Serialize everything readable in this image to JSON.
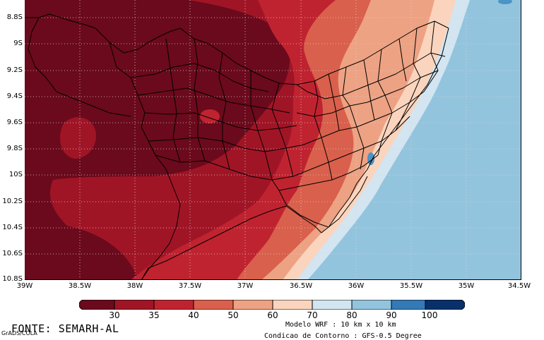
{
  "map": {
    "lat_labels": [
      "8.8S",
      "9S",
      "9.2S",
      "9.4S",
      "9.6S",
      "9.8S",
      "10S",
      "10.2S",
      "10.4S",
      "10.6S",
      "10.8S"
    ],
    "lon_labels": [
      "39W",
      "38.5W",
      "38W",
      "37.5W",
      "37W",
      "36.5W",
      "36W",
      "35.5W",
      "35W",
      "34.5W"
    ],
    "extent": {
      "lon_min": -39,
      "lon_max": -34.5,
      "lat_top": -8.66,
      "lat_bottom": -10.8
    },
    "colors": {
      "darkest_red": "#6b0a1c",
      "dark_red": "#a01526",
      "red": "#c02330",
      "salmon": "#d9604c",
      "light_salmon": "#eda283",
      "pale_peach": "#fbd4bd",
      "light_blue": "#d2e5f0",
      "ocean_blue": "#93c4de",
      "mid_blue": "#4b94c5",
      "border_line": "#000000",
      "grid_line": "#cccccc"
    }
  },
  "colorbar": {
    "labels": [
      "30",
      "35",
      "40",
      "50",
      "60",
      "70",
      "80",
      "90",
      "100"
    ],
    "colors": [
      "#6b0a1c",
      "#a01526",
      "#c02330",
      "#d9604c",
      "#eda283",
      "#fbd4bd",
      "#d2e5f0",
      "#93c4de",
      "#4b94c5",
      "#2166ac",
      "#08306b"
    ]
  },
  "footer": {
    "source": "FONTE: SEMARH-AL",
    "grads": "GrADS/COLA",
    "model_line1": "Modelo WRF : 10 km x 10 km",
    "model_line2": "Condicao de Contorno : GFS-0.5 Degree"
  }
}
